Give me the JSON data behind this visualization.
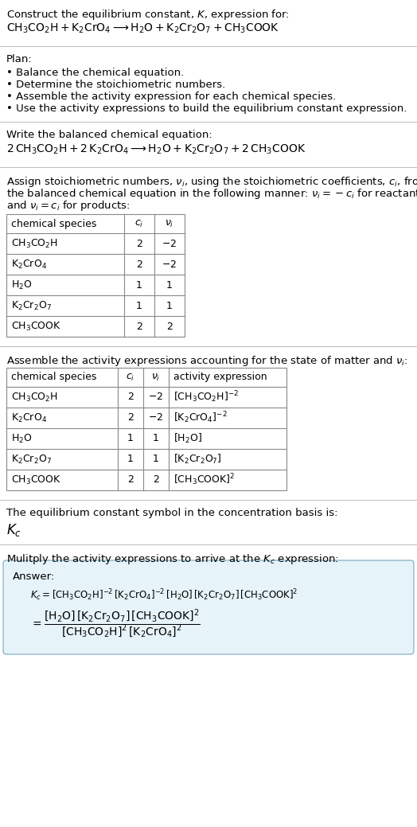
{
  "title_line1": "Construct the equilibrium constant, $K$, expression for:",
  "title_line2": "$\\mathrm{CH_3CO_2H} + \\mathrm{K_2CrO_4} \\longrightarrow \\mathrm{H_2O} + \\mathrm{K_2Cr_2O_7} + \\mathrm{CH_3COOK}$",
  "plan_header": "Plan:",
  "plan_items": [
    "• Balance the chemical equation.",
    "• Determine the stoichiometric numbers.",
    "• Assemble the activity expression for each chemical species.",
    "• Use the activity expressions to build the equilibrium constant expression."
  ],
  "balanced_header": "Write the balanced chemical equation:",
  "balanced_eq": "$2\\,\\mathrm{CH_3CO_2H} + 2\\,\\mathrm{K_2CrO_4} \\longrightarrow \\mathrm{H_2O} + \\mathrm{K_2Cr_2O_7} + 2\\,\\mathrm{CH_3COOK}$",
  "stoich_lines": [
    "Assign stoichiometric numbers, $\\nu_i$, using the stoichiometric coefficients, $c_i$, from",
    "the balanced chemical equation in the following manner: $\\nu_i = -c_i$ for reactants",
    "and $\\nu_i = c_i$ for products:"
  ],
  "table1_col0": "chemical species",
  "table1_col1": "$c_i$",
  "table1_col2": "$\\nu_i$",
  "table1_rows": [
    [
      "$\\mathrm{CH_3CO_2H}$",
      "2",
      "$-2$"
    ],
    [
      "$\\mathrm{K_2CrO_4}$",
      "2",
      "$-2$"
    ],
    [
      "$\\mathrm{H_2O}$",
      "1",
      "1"
    ],
    [
      "$\\mathrm{K_2Cr_2O_7}$",
      "1",
      "1"
    ],
    [
      "$\\mathrm{CH_3COOK}$",
      "2",
      "2"
    ]
  ],
  "activity_header": "Assemble the activity expressions accounting for the state of matter and $\\nu_i$:",
  "table2_col0": "chemical species",
  "table2_col1": "$c_i$",
  "table2_col2": "$\\nu_i$",
  "table2_col3": "activity expression",
  "table2_rows": [
    [
      "$\\mathrm{CH_3CO_2H}$",
      "2",
      "$-2$",
      "$[\\mathrm{CH_3CO_2H}]^{-2}$"
    ],
    [
      "$\\mathrm{K_2CrO_4}$",
      "2",
      "$-2$",
      "$[\\mathrm{K_2CrO_4}]^{-2}$"
    ],
    [
      "$\\mathrm{H_2O}$",
      "1",
      "1",
      "$[\\mathrm{H_2O}]$"
    ],
    [
      "$\\mathrm{K_2Cr_2O_7}$",
      "1",
      "1",
      "$[\\mathrm{K_2Cr_2O_7}]$"
    ],
    [
      "$\\mathrm{CH_3COOK}$",
      "2",
      "2",
      "$[\\mathrm{CH_3COOK}]^2$"
    ]
  ],
  "kc_header": "The equilibrium constant symbol in the concentration basis is:",
  "kc_symbol": "$K_c$",
  "multiply_header": "Mulitply the activity expressions to arrive at the $K_c$ expression:",
  "answer_label": "Answer:",
  "answer_line1": "$K_c = [\\mathrm{CH_3CO_2H}]^{-2}\\,[\\mathrm{K_2CrO_4}]^{-2}\\,[\\mathrm{H_2O}]\\,[\\mathrm{K_2Cr_2O_7}]\\,[\\mathrm{CH_3COOK}]^2$",
  "answer_eq_lhs": "$= \\dfrac{[\\mathrm{H_2O}]\\,[\\mathrm{K_2Cr_2O_7}]\\,[\\mathrm{CH_3COOK}]^2}{[\\mathrm{CH_3CO_2H}]^2\\,[\\mathrm{K_2CrO_4}]^2}$",
  "bg_color": "#ffffff",
  "text_color": "#000000",
  "table_border_color": "#888888",
  "answer_box_fill": "#e6f3f8",
  "answer_box_border": "#90b8cc",
  "sep_color": "#bbbbbb",
  "fs": 9.5,
  "fs_math": 10.0,
  "fs_table": 9.0,
  "fs_kc": 12.0
}
